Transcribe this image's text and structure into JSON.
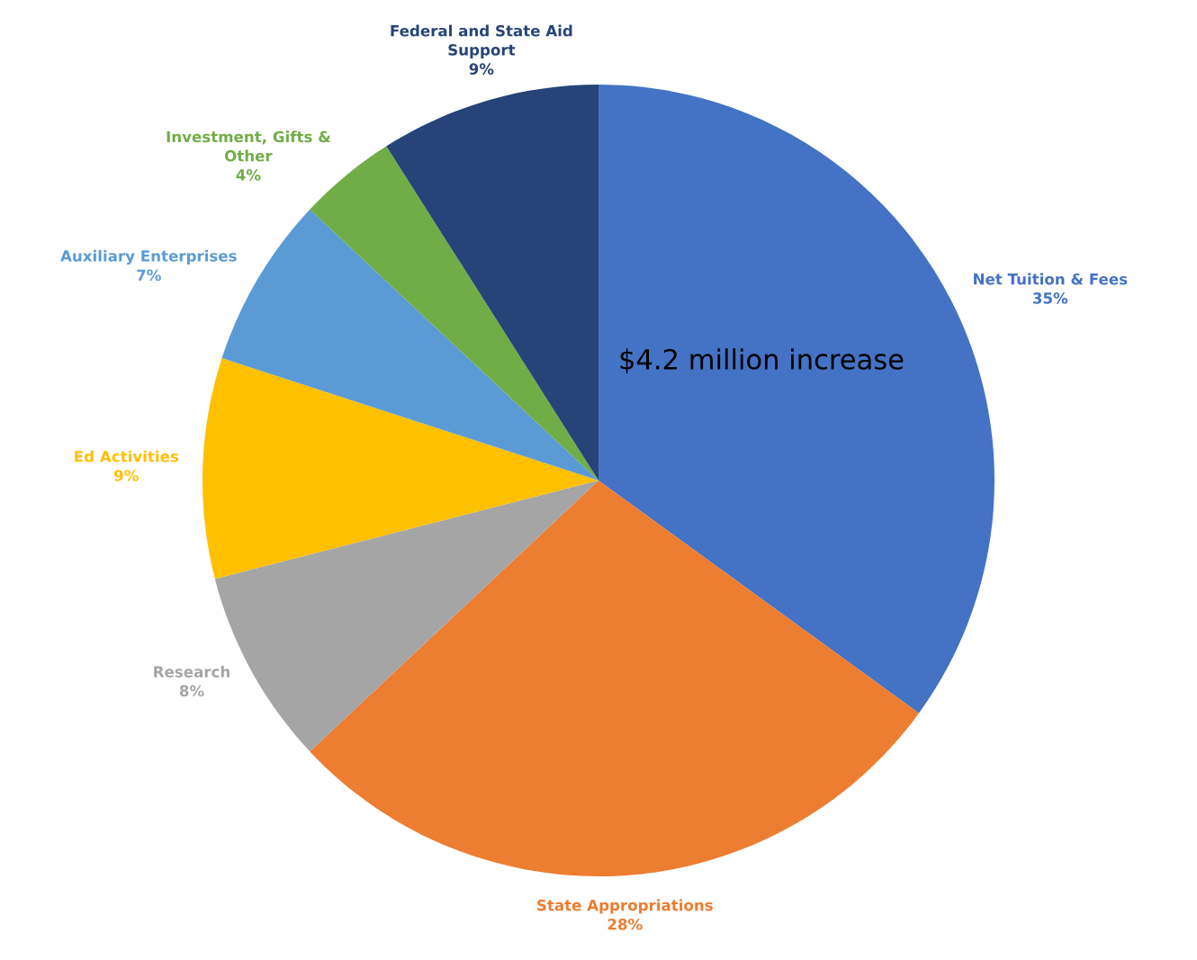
{
  "chart_data": {
    "type": "pie",
    "categories": [
      "Net Tuition & Fees",
      "State Appropriations",
      "Research",
      "Ed Activities",
      "Auxiliary Enterprises",
      "Investment, Gifts &\nOther",
      "Federal and State Aid\nSupport"
    ],
    "values": [
      35,
      28,
      8,
      9,
      7,
      4,
      9
    ],
    "value_labels": [
      "35%",
      "28%",
      "8%",
      "9%",
      "7%",
      "4%",
      "9%"
    ],
    "colors": [
      "#4472c4",
      "#ed7d31",
      "#a5a5a5",
      "#ffc000",
      "#5b9bd5",
      "#70ad47",
      "#264478"
    ],
    "annotations": [
      "$4.2 million increase"
    ],
    "legend": false
  }
}
